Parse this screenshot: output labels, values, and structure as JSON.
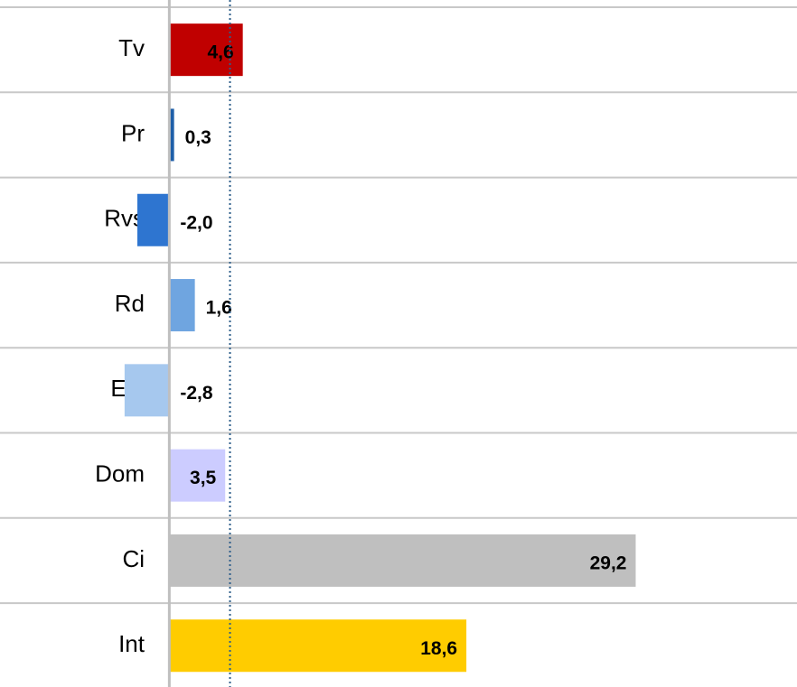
{
  "chart_data": {
    "type": "hbar",
    "categories": [
      "Tv",
      "Pr",
      "Rvs",
      "Rd",
      "Ext",
      "Dom",
      "Ci",
      "Int"
    ],
    "values": [
      4.6,
      0.3,
      -2.0,
      1.6,
      -2.8,
      3.5,
      29.2,
      18.6
    ],
    "value_labels": [
      "4,6",
      "0,3",
      "-2,0",
      "1,6",
      "-2,8",
      "3,5",
      "29,2",
      "18,6"
    ],
    "colors": [
      "#c00000",
      "#1f5fa8",
      "#2e75d0",
      "#6fa5e0",
      "#a6c8ee",
      "#ccccff",
      "#bfbfbf",
      "#ffcc00"
    ],
    "xlim": [
      -10.6,
      39.3
    ],
    "reference": 3.8,
    "grid": true
  }
}
